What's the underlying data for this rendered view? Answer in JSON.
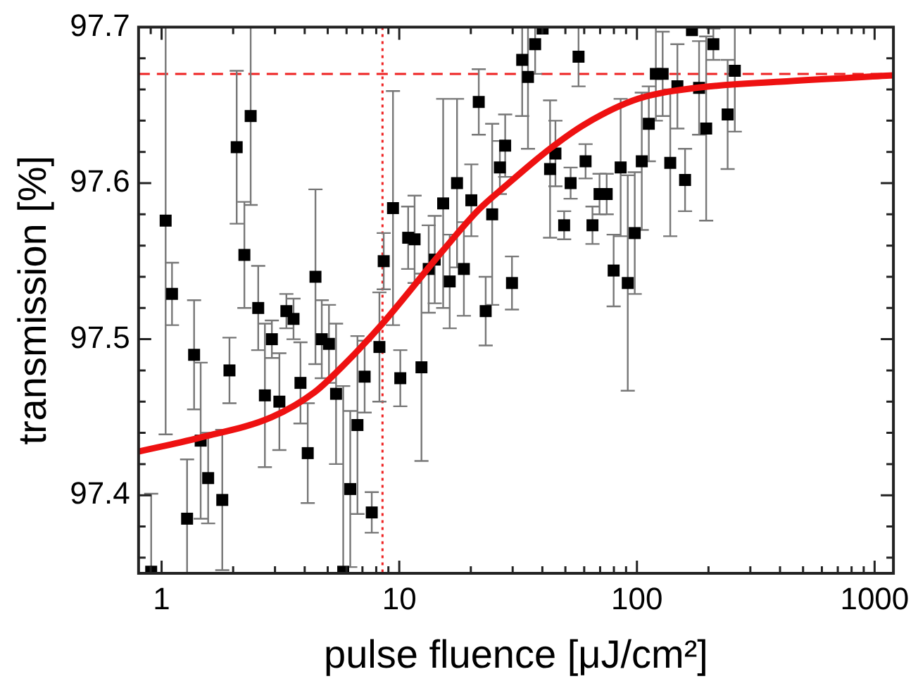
{
  "chart_data": {
    "type": "scatter",
    "xlabel": "pulse fluence [μJ/cm²]",
    "ylabel": "transmission [%]",
    "log": "x",
    "grid": false,
    "legend": false,
    "xlim": [
      0.8,
      1200
    ],
    "ylim": [
      97.35,
      97.7
    ],
    "xticks": [
      {
        "value": 0.9,
        "label": null
      },
      1,
      {
        "value": 2,
        "label": null
      },
      {
        "value": 3,
        "label": null
      },
      {
        "value": 4,
        "label": null
      },
      {
        "value": 5,
        "label": null
      },
      {
        "value": 6,
        "label": null
      },
      {
        "value": 7,
        "label": null
      },
      {
        "value": 8,
        "label": null
      },
      {
        "value": 9,
        "label": null
      },
      10,
      {
        "value": 20,
        "label": null
      },
      {
        "value": 30,
        "label": null
      },
      {
        "value": 40,
        "label": null
      },
      {
        "value": 50,
        "label": null
      },
      {
        "value": 60,
        "label": null
      },
      {
        "value": 70,
        "label": null
      },
      {
        "value": 80,
        "label": null
      },
      {
        "value": 90,
        "label": null
      },
      100,
      {
        "value": 200,
        "label": null
      },
      {
        "value": 300,
        "label": null
      },
      {
        "value": 400,
        "label": null
      },
      {
        "value": 500,
        "label": null
      },
      {
        "value": 600,
        "label": null
      },
      {
        "value": 700,
        "label": null
      },
      {
        "value": 800,
        "label": null
      },
      {
        "value": 900,
        "label": null
      },
      1000
    ],
    "yticks": [
      {
        "value": 97.36,
        "label": null
      },
      {
        "value": 97.38,
        "label": null
      },
      97.4,
      {
        "value": 97.42,
        "label": null
      },
      {
        "value": 97.44,
        "label": null
      },
      {
        "value": 97.46,
        "label": null
      },
      {
        "value": 97.48,
        "label": null
      },
      97.5,
      {
        "value": 97.52,
        "label": null
      },
      {
        "value": 97.54,
        "label": null
      },
      {
        "value": 97.56,
        "label": null
      },
      {
        "value": 97.58,
        "label": null
      },
      97.6,
      {
        "value": 97.62,
        "label": null
      },
      {
        "value": 97.64,
        "label": null
      },
      {
        "value": 97.66,
        "label": null
      },
      {
        "value": 97.68,
        "label": null
      },
      97.7
    ],
    "ref_lines": [
      {
        "axis": "x",
        "value": 8.5,
        "color": "#ee2222",
        "line_style": "dotted"
      },
      {
        "axis": "y",
        "value": 97.67,
        "color": "#ee2222",
        "line_style": "dashed"
      }
    ],
    "series": [
      {
        "color": "#000000",
        "marker": "square",
        "x": [
          0.904,
          1.04,
          1.106,
          1.28,
          1.37,
          1.46,
          1.57,
          1.8,
          1.93,
          2.07,
          2.23,
          2.37,
          2.55,
          2.72,
          2.91,
          3.13,
          3.35,
          3.59,
          3.84,
          4.12,
          4.44,
          4.72,
          5.06,
          5.42,
          5.81,
          6.22,
          6.67,
          7.15,
          7.66,
          8.25,
          8.6,
          9.41,
          10.1,
          10.9,
          11.6,
          12.4,
          13.3,
          14.1,
          15.3,
          16.3,
          17.5,
          18.7,
          20.1,
          21.6,
          23.1,
          24.6,
          26.5,
          27.9,
          29.8,
          32.9,
          34.8,
          37.3,
          40.1,
          43.1,
          45.4,
          49.4,
          52.6,
          56.8,
          60.8,
          65,
          69.6,
          74.6,
          79.8,
          85.4,
          91.5,
          97.9,
          104.8,
          112.2,
          120.1,
          128.3,
          138.1,
          148,
          159.4,
          170.4,
          182.6,
          195.6,
          209.7,
          240.8,
          258.1
        ],
        "values": [
          97.351,
          97.576,
          97.529,
          97.385,
          97.49,
          97.435,
          97.411,
          97.397,
          97.48,
          97.623,
          97.554,
          97.643,
          97.52,
          97.464,
          97.5,
          97.46,
          97.518,
          97.513,
          97.472,
          97.427,
          97.54,
          97.5,
          97.497,
          97.465,
          97.351,
          97.404,
          97.445,
          97.476,
          97.389,
          97.495,
          97.55,
          97.584,
          97.475,
          97.565,
          97.564,
          97.482,
          97.545,
          97.551,
          97.587,
          97.537,
          97.6,
          97.545,
          97.589,
          97.652,
          97.518,
          97.58,
          97.61,
          97.624,
          97.536,
          97.679,
          97.668,
          97.689,
          97.699,
          97.609,
          97.619,
          97.573,
          97.6,
          97.681,
          97.614,
          97.573,
          97.593,
          97.593,
          97.544,
          97.61,
          97.536,
          97.568,
          97.614,
          97.638,
          97.67,
          97.67,
          97.613,
          97.662,
          97.602,
          97.698,
          97.661,
          97.635,
          97.689,
          97.644,
          97.672
        ],
        "errors": [
          [
            97.35,
            97.401
          ],
          [
            97.439,
            97.7
          ],
          0.02,
          0.038,
          0.035,
          0.05,
          0.029,
          0.045,
          0.021,
          [
            97.574,
            97.672
          ],
          0.034,
          [
            97.586,
            97.7
          ],
          0.027,
          0.046,
          0.012,
          0.031,
          0.011,
          0.013,
          0.026,
          0.032,
          0.056,
          0.025,
          0.025,
          0.045,
          [
            97.35,
            97.47
          ],
          0.05,
          0.057,
          0.023,
          0.013,
          0.035,
          0.018,
          0.075,
          0.018,
          0.02,
          0.028,
          0.06,
          0.028,
          0.028,
          0.067,
          0.03,
          0.054,
          0.03,
          0.023,
          0.021,
          0.022,
          0.058,
          0.017,
          0.02,
          0.017,
          [
            97.643,
            97.7
          ],
          [
            97.622,
            97.7
          ],
          [
            97.67,
            97.7
          ],
          null,
          0.044,
          0.021,
          0.009,
          0.01,
          [
            97.662,
            97.7
          ],
          0.011,
          0.012,
          0.013,
          0.013,
          0.023,
          0.044,
          0.069,
          0.039,
          0.044,
          0.024,
          0.03,
          0.027,
          0.047,
          0.027,
          0.02,
          null,
          0.03,
          0.059,
          0.01,
          0.035,
          [
            97.633,
            97.7
          ]
        ]
      },
      {
        "type": "line",
        "color": "#ee1111",
        "marker": "none",
        "x": [
          0.8,
          1.46,
          2.9,
          4.4,
          5.8,
          8.5,
          15.3,
          21.6,
          27.9,
          43,
          60.8,
          101,
          177,
          400,
          1200
        ],
        "values": [
          97.428,
          97.437,
          97.45,
          97.466,
          97.483,
          97.51,
          97.557,
          97.583,
          97.598,
          97.622,
          97.638,
          97.654,
          97.661,
          97.665,
          97.669
        ]
      }
    ]
  }
}
